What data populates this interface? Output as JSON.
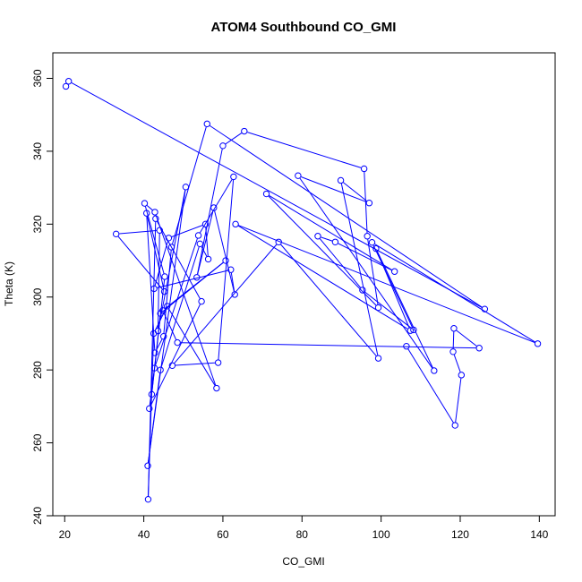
{
  "chart_data": {
    "type": "scatter",
    "title": "ATOM4 Southbound CO_GMI",
    "xlabel": "CO_GMI",
    "ylabel": "Theta (K)",
    "xlim": [
      17,
      144
    ],
    "ylim": [
      240,
      367
    ],
    "x_ticks": [
      20,
      40,
      60,
      80,
      100,
      120,
      140
    ],
    "y_ticks": [
      240,
      260,
      280,
      300,
      320,
      340,
      360
    ],
    "grid": false,
    "legend": "none",
    "colors": {
      "series": "#0000ff",
      "axis": "#000000"
    },
    "series": [
      {
        "points": [
          [
            20.3,
            357.8
          ],
          [
            21.0,
            359.2
          ],
          [
            126.2,
            296.7
          ],
          [
            56.0,
            347.5
          ],
          [
            47.0,
            313.7
          ],
          [
            45.0,
            289.2
          ],
          [
            42.8,
            284.7
          ],
          [
            40.7,
            323.0
          ],
          [
            45.2,
            301.5
          ],
          [
            33.0,
            317.3
          ],
          [
            44.0,
            318.3
          ],
          [
            43.6,
            290.7
          ],
          [
            50.6,
            330.2
          ],
          [
            41.0,
            253.7
          ],
          [
            44.2,
            280.0
          ],
          [
            54.2,
            314.6
          ],
          [
            56.3,
            310.4
          ],
          [
            55.6,
            320.0
          ],
          [
            46.3,
            316.2
          ],
          [
            42.6,
            302.3
          ],
          [
            62.0,
            307.5
          ],
          [
            63.0,
            300.7
          ],
          [
            57.7,
            324.5
          ],
          [
            53.4,
            305.4
          ],
          [
            60.0,
            341.5
          ],
          [
            65.4,
            345.5
          ],
          [
            95.7,
            335.2
          ],
          [
            96.5,
            316.7
          ],
          [
            99.3,
            297.1
          ],
          [
            71.0,
            328.3
          ],
          [
            103.4,
            307.0
          ],
          [
            88.4,
            315.1
          ],
          [
            84.0,
            316.7
          ],
          [
            95.3,
            301.9
          ],
          [
            108.2,
            291.0
          ],
          [
            97.7,
            315.0
          ],
          [
            139.6,
            287.2
          ],
          [
            63.2,
            320.0
          ],
          [
            107.4,
            290.8
          ],
          [
            98.7,
            313.3
          ],
          [
            113.4,
            279.8
          ],
          [
            79.0,
            333.3
          ],
          [
            97.0,
            325.8
          ],
          [
            89.8,
            332.0
          ],
          [
            99.3,
            283.2
          ],
          [
            74.1,
            315.1
          ],
          [
            47.2,
            281.2
          ],
          [
            58.8,
            282.0
          ],
          [
            62.7,
            333.0
          ],
          [
            53.8,
            316.9
          ],
          [
            42.7,
            280.5
          ],
          [
            41.4,
            269.4
          ],
          [
            54.6,
            298.8
          ],
          [
            43.0,
            321.5
          ],
          [
            41.1,
            244.5
          ],
          [
            42.5,
            290.0
          ],
          [
            45.9,
            297.5
          ],
          [
            58.4,
            275.0
          ],
          [
            42.8,
            323.3
          ],
          [
            40.2,
            325.7
          ],
          [
            45.3,
            305.6
          ],
          [
            42.0,
            273.3
          ],
          [
            44.2,
            295.5
          ],
          [
            60.7,
            310.0
          ],
          [
            44.8,
            296.3
          ],
          [
            48.5,
            287.5
          ],
          [
            124.8,
            286.0
          ],
          [
            118.4,
            291.4
          ],
          [
            118.2,
            285.0
          ],
          [
            120.3,
            278.6
          ],
          [
            118.7,
            264.8
          ],
          [
            106.4,
            286.5
          ]
        ]
      }
    ]
  }
}
